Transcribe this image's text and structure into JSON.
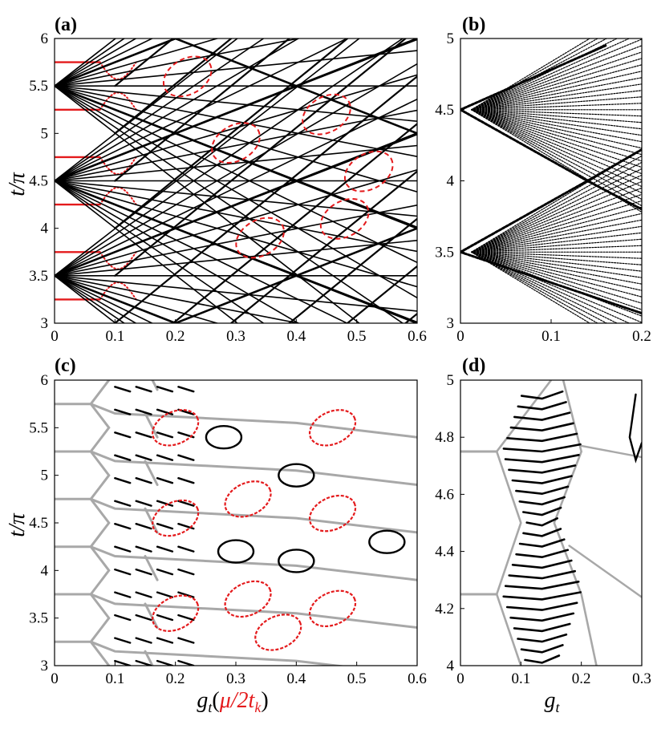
{
  "figure": {
    "ylabel_left": "t/π",
    "xlabel_left": "g",
    "xlabel_left_sub": "t",
    "xlabel_left_paren_open": "(",
    "xlabel_left_red": "μ/2t",
    "xlabel_left_red_sub": "k",
    "xlabel_left_paren_close": ")",
    "xlabel_right": "g",
    "xlabel_right_sub": "t",
    "colors": {
      "black": "#000000",
      "red": "#e41a1c",
      "gray": "#a8a8a8"
    }
  },
  "chart_data": [
    {
      "panel": "(a)",
      "type": "scatter",
      "xlim": [
        0,
        0.6
      ],
      "ylim": [
        3,
        6
      ],
      "xticks": [
        "0",
        "0.1",
        "0.2",
        "0.3",
        "0.4",
        "0.5",
        "0.6"
      ],
      "yticks": [
        "3",
        "3.5",
        "4",
        "4.5",
        "5",
        "5.5",
        "6"
      ],
      "fan_centers_y": [
        3.5,
        4.5,
        5.5
      ],
      "red_levels_y": [
        3.25,
        3.75,
        4.25,
        4.75,
        5.25,
        5.75
      ],
      "series": [
        {
          "color": "black"
        },
        {
          "color": "red"
        }
      ]
    },
    {
      "panel": "(b)",
      "type": "scatter",
      "xlim": [
        0,
        0.2
      ],
      "ylim": [
        3,
        5
      ],
      "xticks": [
        "0",
        "0.1",
        "0.2"
      ],
      "yticks": [
        "3",
        "3.5",
        "4",
        "4.5",
        "5"
      ],
      "fan_centers_y": [
        3.5,
        4.5
      ],
      "series": [
        {
          "color": "black"
        }
      ]
    },
    {
      "panel": "(c)",
      "type": "scatter",
      "xlim": [
        0,
        0.6
      ],
      "ylim": [
        3,
        6
      ],
      "xticks": [
        "0",
        "0.1",
        "0.2",
        "0.3",
        "0.4",
        "0.5",
        "0.6"
      ],
      "yticks": [
        "3",
        "3.5",
        "4",
        "4.5",
        "5",
        "5.5",
        "6"
      ],
      "gray_levels_y": [
        3.25,
        3.75,
        4.25,
        4.75,
        5.25,
        5.75
      ],
      "series": [
        {
          "color": "black"
        },
        {
          "color": "red"
        },
        {
          "color": "gray"
        }
      ]
    },
    {
      "panel": "(d)",
      "type": "scatter",
      "xlim": [
        0,
        0.3
      ],
      "ylim": [
        4,
        5
      ],
      "xticks": [
        "0",
        "0.1",
        "0.2",
        "0.3"
      ],
      "yticks": [
        "4",
        "4.2",
        "4.4",
        "4.6",
        "4.8",
        "5"
      ],
      "gray_levels_y": [
        4.25,
        4.75
      ],
      "series": [
        {
          "color": "black"
        },
        {
          "color": "gray"
        }
      ]
    }
  ]
}
